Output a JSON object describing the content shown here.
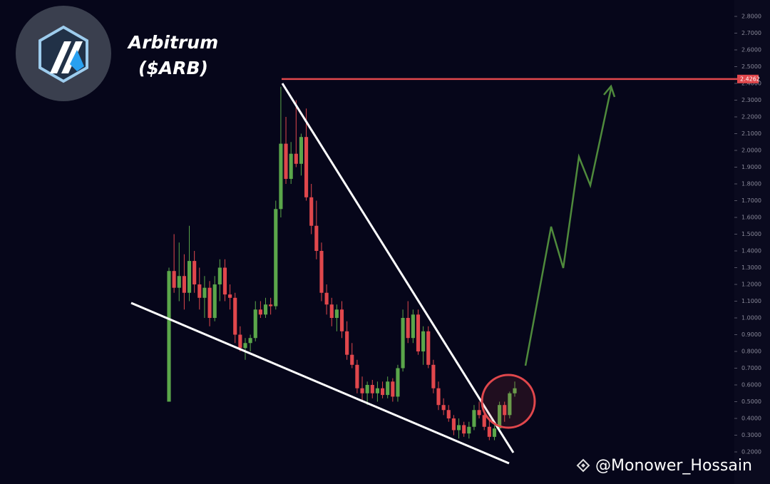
{
  "chart_data": {
    "type": "candlestick",
    "title": "Arbitrum",
    "subtitle": "($ARB)",
    "annotation": "@Monower_Hossain",
    "up_color": "#5aa64a",
    "down_color": "#e0474c",
    "ylim": [
      0.1,
      2.9
    ],
    "yticks": [
      {
        "value": 0.2,
        "label": "0.2000"
      },
      {
        "value": 0.3,
        "label": "0.3000"
      },
      {
        "value": 0.4,
        "label": "0.4000"
      },
      {
        "value": 0.5,
        "label": "0.5000"
      },
      {
        "value": 0.6,
        "label": "0.6000"
      },
      {
        "value": 0.7,
        "label": "0.7000"
      },
      {
        "value": 0.8,
        "label": "0.8000"
      },
      {
        "value": 0.9,
        "label": "0.9000"
      },
      {
        "value": 1.0,
        "label": "1.0000"
      },
      {
        "value": 1.1,
        "label": "1.1000"
      },
      {
        "value": 1.2,
        "label": "1.2000"
      },
      {
        "value": 1.3,
        "label": "1.3000"
      },
      {
        "value": 1.4,
        "label": "1.4000"
      },
      {
        "value": 1.5,
        "label": "1.5000"
      },
      {
        "value": 1.6,
        "label": "1.6000"
      },
      {
        "value": 1.7,
        "label": "1.7000"
      },
      {
        "value": 1.8,
        "label": "1.8000"
      },
      {
        "value": 1.9,
        "label": "1.9000"
      },
      {
        "value": 2.0,
        "label": "2.0000"
      },
      {
        "value": 2.1,
        "label": "2.1000"
      },
      {
        "value": 2.2,
        "label": "2.2000"
      },
      {
        "value": 2.3,
        "label": "2.3000"
      },
      {
        "value": 2.4,
        "label": "2.4000"
      },
      {
        "value": 2.5,
        "label": "2.5000"
      },
      {
        "value": 2.6,
        "label": "2.6000"
      },
      {
        "value": 2.7,
        "label": "2.7000"
      },
      {
        "value": 2.8,
        "label": "2.8000"
      }
    ],
    "price_line": {
      "value": 2.4262,
      "color": "#e0474c"
    },
    "open": [
      0.5,
      1.28,
      1.18,
      1.25,
      1.15,
      1.34,
      1.2,
      1.12,
      1.18,
      1.0,
      1.2,
      1.3,
      1.14,
      1.12,
      0.9,
      0.82,
      0.85,
      0.88,
      1.05,
      1.02,
      1.08,
      1.07,
      1.65,
      2.04,
      1.83,
      1.98,
      1.92,
      2.08,
      1.72,
      1.55,
      1.4,
      1.15,
      1.08,
      1.0,
      1.05,
      0.92,
      0.78,
      0.72,
      0.58,
      0.55,
      0.6,
      0.55,
      0.58,
      0.54,
      0.62,
      0.53,
      0.7,
      1.0,
      0.88,
      1.02,
      0.8,
      0.92,
      0.72,
      0.58,
      0.48,
      0.45,
      0.4,
      0.33,
      0.36,
      0.31,
      0.35,
      0.45,
      0.42,
      0.35,
      0.29,
      0.34,
      0.48,
      0.42,
      0.55
    ],
    "high": [
      1.3,
      1.5,
      1.45,
      1.38,
      1.55,
      1.4,
      1.3,
      1.25,
      1.22,
      1.25,
      1.35,
      1.35,
      1.2,
      1.15,
      0.95,
      0.88,
      0.9,
      1.1,
      1.1,
      1.12,
      1.12,
      1.7,
      2.38,
      2.2,
      2.05,
      2.3,
      2.1,
      2.25,
      1.8,
      1.7,
      1.45,
      1.2,
      1.12,
      1.08,
      1.1,
      0.98,
      0.85,
      0.75,
      0.65,
      0.62,
      0.63,
      0.62,
      0.62,
      0.65,
      0.64,
      0.72,
      1.05,
      1.1,
      1.05,
      1.05,
      0.95,
      0.95,
      0.75,
      0.62,
      0.52,
      0.48,
      0.42,
      0.4,
      0.38,
      0.38,
      0.48,
      0.5,
      0.45,
      0.4,
      0.36,
      0.5,
      0.5,
      0.56,
      0.62
    ],
    "low": [
      0.5,
      1.15,
      1.1,
      1.05,
      1.1,
      1.15,
      1.05,
      1.0,
      0.95,
      0.98,
      1.1,
      1.1,
      1.05,
      0.85,
      0.8,
      0.75,
      0.8,
      0.86,
      1.0,
      1.0,
      1.02,
      1.05,
      1.6,
      1.8,
      1.8,
      1.9,
      1.85,
      1.7,
      1.5,
      1.35,
      1.1,
      1.02,
      0.95,
      0.92,
      0.88,
      0.75,
      0.7,
      0.55,
      0.5,
      0.48,
      0.52,
      0.5,
      0.52,
      0.52,
      0.5,
      0.5,
      0.68,
      0.85,
      0.85,
      0.78,
      0.72,
      0.7,
      0.55,
      0.45,
      0.42,
      0.38,
      0.3,
      0.28,
      0.29,
      0.28,
      0.33,
      0.4,
      0.33,
      0.27,
      0.27,
      0.32,
      0.38,
      0.4,
      0.53
    ],
    "close": [
      1.28,
      1.18,
      1.25,
      1.15,
      1.34,
      1.2,
      1.12,
      1.18,
      1.0,
      1.2,
      1.3,
      1.14,
      1.12,
      0.9,
      0.82,
      0.85,
      0.88,
      1.05,
      1.02,
      1.08,
      1.07,
      1.65,
      2.04,
      1.83,
      1.98,
      1.92,
      2.08,
      1.72,
      1.55,
      1.4,
      1.15,
      1.08,
      1.0,
      1.05,
      0.92,
      0.78,
      0.72,
      0.58,
      0.55,
      0.6,
      0.55,
      0.58,
      0.54,
      0.62,
      0.53,
      0.7,
      1.0,
      0.88,
      1.02,
      0.8,
      0.92,
      0.72,
      0.58,
      0.48,
      0.45,
      0.4,
      0.33,
      0.36,
      0.31,
      0.35,
      0.45,
      0.42,
      0.35,
      0.29,
      0.34,
      0.48,
      0.42,
      0.55,
      0.58
    ]
  }
}
